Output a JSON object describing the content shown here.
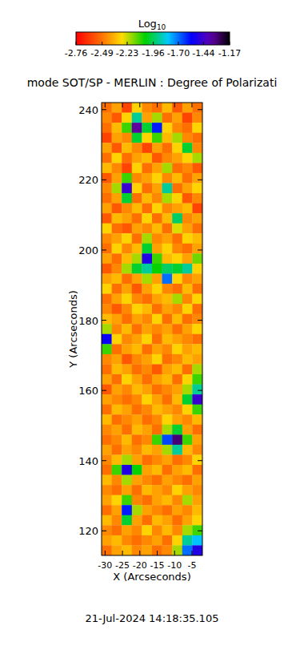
{
  "chart_data": {
    "type": "heatmap",
    "title": "mode SOT/SP - MERLIN : Degree of Polarizati",
    "xlabel": "X (Arcseconds)",
    "ylabel": "Y (Arcseconds)",
    "annotation": "21-Jul-2024 14:18:35.105",
    "xlim": [
      -31,
      -2
    ],
    "ylim": [
      113,
      242
    ],
    "xticks": [
      -30,
      -25,
      -20,
      -15,
      -10,
      -5
    ],
    "yticks": [
      120,
      140,
      160,
      180,
      200,
      220,
      240
    ],
    "colorbar": {
      "title": "Log10",
      "range": [
        -2.76,
        -1.17
      ],
      "ticks": [
        -2.76,
        -2.49,
        -2.23,
        -1.96,
        {
          "value": -1.7,
          "label": "-1.70"
        },
        -1.44,
        -1.17
      ]
    },
    "cells": [
      [
        -2.5,
        -2.4,
        -2.6,
        -2.3,
        -2.45,
        -2.5,
        -2.35,
        -2.55,
        -2.4,
        -2.5
      ],
      [
        -2.45,
        -2.55,
        -2.3,
        -1.9,
        -2.4,
        -2.2,
        -2.5,
        -2.4,
        -2.6,
        -2.45
      ],
      [
        -2.5,
        -2.35,
        -2.1,
        -1.35,
        -2.0,
        -1.6,
        -2.3,
        -2.45,
        -2.5,
        -2.3
      ],
      [
        -2.6,
        -2.4,
        -2.45,
        -2.0,
        -2.3,
        -2.1,
        -2.35,
        -2.2,
        -2.45,
        -2.5
      ],
      [
        -2.4,
        -2.55,
        -2.35,
        -2.45,
        -2.6,
        -2.4,
        -2.5,
        -2.3,
        -2.0,
        -2.45
      ],
      [
        -2.5,
        -2.3,
        -2.5,
        -2.4,
        -2.35,
        -2.55,
        -2.45,
        -2.4,
        -2.3,
        -2.2
      ],
      [
        -2.35,
        -2.45,
        -2.6,
        -2.3,
        -2.5,
        -2.4,
        -2.2,
        -2.5,
        -2.45,
        -2.55
      ],
      [
        -2.55,
        -2.4,
        -2.1,
        -2.45,
        -2.4,
        -2.3,
        -2.45,
        -2.35,
        -2.5,
        -2.4
      ],
      [
        -2.45,
        -2.2,
        -1.45,
        -2.3,
        -2.5,
        -2.4,
        -1.9,
        -2.5,
        -2.4,
        -2.3
      ],
      [
        -2.5,
        -2.4,
        -2.0,
        -2.5,
        -2.35,
        -2.45,
        -2.2,
        -2.3,
        -2.55,
        -2.45
      ],
      [
        -2.4,
        -2.55,
        -2.45,
        -2.35,
        -2.5,
        -2.3,
        -2.45,
        -2.4,
        -2.35,
        -2.6
      ],
      [
        -2.55,
        -2.35,
        -2.4,
        -2.5,
        -2.3,
        -2.5,
        -2.35,
        -1.95,
        -2.45,
        -2.4
      ],
      [
        -2.3,
        -2.5,
        -2.55,
        -2.4,
        -2.45,
        -2.35,
        -2.5,
        -2.25,
        -2.4,
        -2.5
      ],
      [
        -2.45,
        -2.4,
        -2.3,
        -2.5,
        -2.2,
        -2.45,
        -2.4,
        -2.5,
        -2.3,
        -2.35
      ],
      [
        -2.5,
        -2.3,
        -2.45,
        -2.35,
        -2.0,
        -2.4,
        -2.3,
        -2.45,
        -2.5,
        -2.4
      ],
      [
        -2.4,
        -2.5,
        -2.35,
        -2.2,
        -1.5,
        -2.1,
        -2.35,
        -2.3,
        -2.4,
        -2.15
      ],
      [
        -2.55,
        -2.45,
        -2.2,
        -2.0,
        -1.9,
        -2.05,
        -1.95,
        -2.0,
        -1.9,
        -2.3
      ],
      [
        -2.4,
        -2.35,
        -2.5,
        -2.4,
        -2.2,
        -2.4,
        -1.7,
        -2.3,
        -2.45,
        -2.4
      ],
      [
        -2.3,
        -2.5,
        -2.4,
        -2.55,
        -2.4,
        -2.3,
        -2.45,
        -2.5,
        -2.35,
        -2.5
      ],
      [
        -2.5,
        -2.4,
        -2.3,
        -2.45,
        -2.5,
        -2.4,
        -2.35,
        -2.2,
        -2.45,
        -2.3
      ],
      [
        -2.45,
        -2.55,
        -2.45,
        -2.3,
        -2.35,
        -2.5,
        -2.4,
        -2.45,
        -2.3,
        -2.5
      ],
      [
        -2.35,
        -2.4,
        -2.5,
        -2.4,
        -2.45,
        -2.3,
        -2.5,
        -2.35,
        -2.5,
        -2.45
      ],
      [
        -2.2,
        -2.45,
        -2.35,
        -2.5,
        -2.4,
        -2.45,
        -2.4,
        -2.5,
        -2.4,
        -2.3
      ],
      [
        -1.55,
        -2.3,
        -2.45,
        -2.4,
        -2.3,
        -2.5,
        -2.35,
        -2.4,
        -2.45,
        -2.5
      ],
      [
        -2.1,
        -2.5,
        -2.4,
        -2.35,
        -2.5,
        -2.4,
        -2.45,
        -2.3,
        -2.4,
        -2.35
      ],
      [
        -2.45,
        -2.4,
        -2.55,
        -2.45,
        -2.4,
        -2.3,
        -2.5,
        -2.45,
        -2.35,
        -2.4
      ],
      [
        -2.5,
        -2.35,
        -2.4,
        -2.5,
        -2.45,
        -2.55,
        -2.4,
        -2.35,
        -2.5,
        -2.2
      ],
      [
        -2.4,
        -2.5,
        -2.3,
        -2.4,
        -2.5,
        -2.4,
        -2.35,
        -2.5,
        -2.3,
        -2.1
      ],
      [
        -2.55,
        -2.4,
        -2.45,
        -2.35,
        -2.4,
        -2.5,
        -2.45,
        -2.4,
        -2.2,
        -1.9
      ],
      [
        -2.4,
        -2.45,
        -2.5,
        -2.45,
        -2.3,
        -2.4,
        -2.5,
        -2.35,
        -2.0,
        -1.45
      ],
      [
        -2.5,
        -2.35,
        -2.4,
        -2.5,
        -2.45,
        -2.35,
        -2.4,
        -2.45,
        -2.3,
        -2.1
      ],
      [
        -2.35,
        -2.5,
        -2.45,
        -2.4,
        -2.5,
        -2.45,
        -2.3,
        -2.4,
        -2.45,
        -2.35
      ],
      [
        -2.45,
        -2.4,
        -2.5,
        -2.35,
        -2.4,
        -2.5,
        -2.2,
        -2.0,
        -2.4,
        -2.5
      ],
      [
        -2.5,
        -2.45,
        -2.35,
        -2.5,
        -2.45,
        -2.1,
        -1.65,
        -1.3,
        -2.1,
        -2.4
      ],
      [
        -2.4,
        -2.5,
        -2.4,
        -2.45,
        -2.35,
        -2.4,
        -2.2,
        -1.9,
        -2.35,
        -2.45
      ],
      [
        -2.45,
        -2.35,
        -2.2,
        -2.4,
        -2.5,
        -2.45,
        -2.4,
        -2.5,
        -2.45,
        -2.3
      ],
      [
        -2.5,
        -2.1,
        -1.5,
        -2.05,
        -2.4,
        -2.35,
        -2.5,
        -2.4,
        -2.35,
        -2.5
      ],
      [
        -2.35,
        -2.45,
        -2.2,
        -2.4,
        -2.45,
        -2.5,
        -2.4,
        -2.45,
        -2.5,
        -2.4
      ],
      [
        -2.45,
        -2.5,
        -2.4,
        -2.5,
        -2.35,
        -2.4,
        -2.45,
        -2.3,
        -2.4,
        -2.45
      ],
      [
        -2.4,
        -2.3,
        -2.1,
        -2.45,
        -2.5,
        -2.4,
        -2.35,
        -2.45,
        -2.2,
        -2.4
      ],
      [
        -2.5,
        -2.4,
        -1.6,
        -2.2,
        -2.4,
        -2.45,
        -2.5,
        -2.4,
        -2.45,
        -2.35
      ],
      [
        -2.35,
        -2.45,
        -2.0,
        -2.4,
        -2.5,
        -2.35,
        -2.4,
        -2.5,
        -2.4,
        -2.3
      ],
      [
        -2.45,
        -2.5,
        -2.4,
        -2.45,
        -2.3,
        -2.45,
        -2.35,
        -2.45,
        -2.2,
        -2.1
      ],
      [
        -2.4,
        -2.35,
        -2.45,
        -2.5,
        -2.45,
        -2.4,
        -2.5,
        -2.3,
        -1.9,
        -1.8
      ],
      [
        -2.5,
        -2.4,
        -2.35,
        -2.45,
        -2.4,
        -2.5,
        -2.45,
        -2.2,
        -1.7,
        -1.5
      ]
    ]
  }
}
